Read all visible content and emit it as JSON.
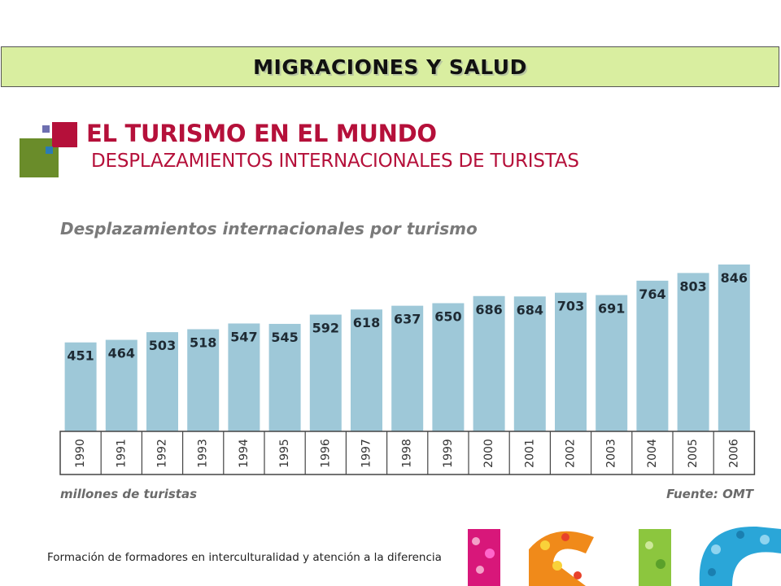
{
  "banner": {
    "title": "MIGRACIONES Y SALUD"
  },
  "header": {
    "title": "EL TURISMO EN EL MUNDO",
    "subtitle": "DESPLAZAMIENTOS INTERNACIONALES DE TURISTAS"
  },
  "footer": {
    "text": "Formación de formadores en interculturalidad y atención a la diferencia"
  },
  "colors": {
    "bar": "#9ec8d8",
    "title": "#b5103a",
    "banner": "#d9eea0"
  },
  "chart_data": {
    "type": "bar",
    "title": "Desplazamientos internacionales por turismo",
    "unit_label": "millones de turistas",
    "source": "Fuente: OMT",
    "categories": [
      "1990",
      "1991",
      "1992",
      "1993",
      "1994",
      "1995",
      "1996",
      "1997",
      "1998",
      "1999",
      "2000",
      "2001",
      "2002",
      "2003",
      "2004",
      "2005",
      "2006"
    ],
    "values": [
      451,
      464,
      503,
      518,
      547,
      545,
      592,
      618,
      637,
      650,
      686,
      684,
      703,
      691,
      764,
      803,
      846
    ],
    "grid": false,
    "legend": "none"
  }
}
